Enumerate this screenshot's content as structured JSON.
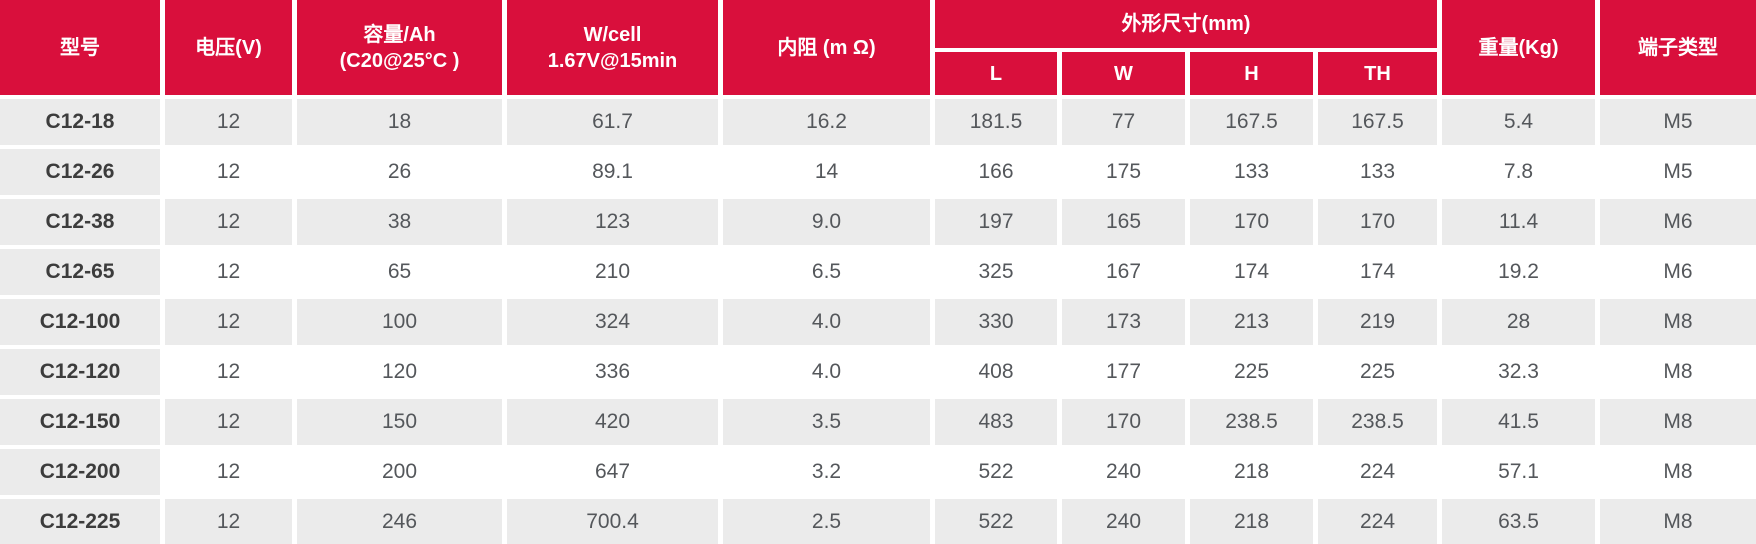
{
  "table": {
    "title": "battery-specifications",
    "colors": {
      "header_red": "#D90F3C",
      "row_gray": "#EBEBEB",
      "header_text": "#FFFFFF",
      "model_text": "#3C3C3C",
      "data_text": "#54575B"
    },
    "headers": {
      "model": "型号",
      "voltage": "电压(V)",
      "capacity_line1": "容量/Ah",
      "capacity_line2": "(C20@25°C )",
      "wcell_line1": "W/cell",
      "wcell_line2": "1.67V@15min",
      "resistance": "内阻 (m Ω)",
      "dimensions": "外形尺寸(mm)",
      "dim_l": "L",
      "dim_w": "W",
      "dim_h": "H",
      "dim_th": "TH",
      "weight": "重量(Kg)",
      "terminal": "端子类型"
    },
    "rows": [
      {
        "model": "C12-18",
        "voltage": "12",
        "capacity": "18",
        "wcell": "61.7",
        "resistance": "16.2",
        "l": "181.5",
        "w": "77",
        "h": "167.5",
        "th": "167.5",
        "weight": "5.4",
        "terminal": "M5"
      },
      {
        "model": "C12-26",
        "voltage": "12",
        "capacity": "26",
        "wcell": "89.1",
        "resistance": "14",
        "l": "166",
        "w": "175",
        "h": "133",
        "th": "133",
        "weight": "7.8",
        "terminal": "M5"
      },
      {
        "model": "C12-38",
        "voltage": "12",
        "capacity": "38",
        "wcell": "123",
        "resistance": "9.0",
        "l": "197",
        "w": "165",
        "h": "170",
        "th": "170",
        "weight": "11.4",
        "terminal": "M6"
      },
      {
        "model": "C12-65",
        "voltage": "12",
        "capacity": "65",
        "wcell": "210",
        "resistance": "6.5",
        "l": "325",
        "w": "167",
        "h": "174",
        "th": "174",
        "weight": "19.2",
        "terminal": "M6"
      },
      {
        "model": "C12-100",
        "voltage": "12",
        "capacity": "100",
        "wcell": "324",
        "resistance": "4.0",
        "l": "330",
        "w": "173",
        "h": "213",
        "th": "219",
        "weight": "28",
        "terminal": "M8"
      },
      {
        "model": "C12-120",
        "voltage": "12",
        "capacity": "120",
        "wcell": "336",
        "resistance": "4.0",
        "l": "408",
        "w": "177",
        "h": "225",
        "th": "225",
        "weight": "32.3",
        "terminal": "M8"
      },
      {
        "model": "C12-150",
        "voltage": "12",
        "capacity": "150",
        "wcell": "420",
        "resistance": "3.5",
        "l": "483",
        "w": "170",
        "h": "238.5",
        "th": "238.5",
        "weight": "41.5",
        "terminal": "M8"
      },
      {
        "model": "C12-200",
        "voltage": "12",
        "capacity": "200",
        "wcell": "647",
        "resistance": "3.2",
        "l": "522",
        "w": "240",
        "h": "218",
        "th": "224",
        "weight": "57.1",
        "terminal": "M8"
      },
      {
        "model": "C12-225",
        "voltage": "12",
        "capacity": "246",
        "wcell": "700.4",
        "resistance": "2.5",
        "l": "522",
        "w": "240",
        "h": "218",
        "th": "224",
        "weight": "63.5",
        "terminal": "M8"
      }
    ]
  }
}
